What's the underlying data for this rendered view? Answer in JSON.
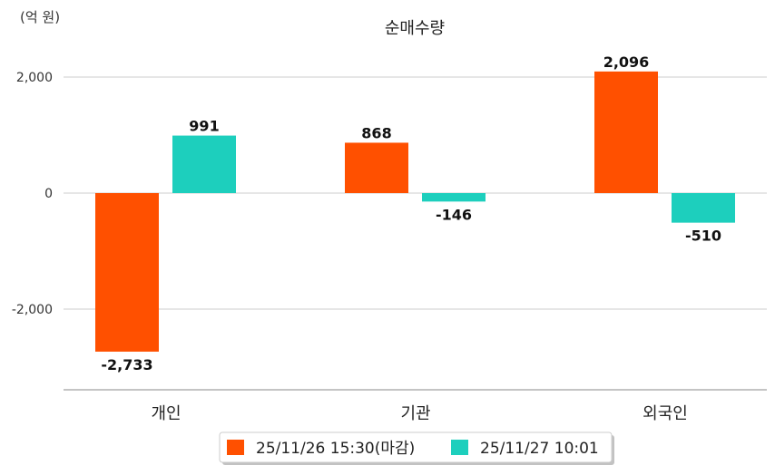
{
  "chart_data": {
    "type": "bar",
    "title": "순매수량",
    "unit_label": "(억 원)",
    "categories": [
      "개인",
      "기관",
      "외국인"
    ],
    "series": [
      {
        "name": "25/11/26 15:30(마감)",
        "color": "#FF5000",
        "values": [
          -2733,
          868,
          2096
        ],
        "labels": [
          "-2,733",
          "868",
          "2,096"
        ]
      },
      {
        "name": "25/11/27 10:01",
        "color": "#1DCFBD",
        "values": [
          991,
          -146,
          -510
        ],
        "labels": [
          "991",
          "-146",
          "-510"
        ]
      }
    ],
    "yticks": [
      2000,
      0,
      -2000
    ],
    "ytick_labels": [
      "2,000",
      "0",
      "-2,000"
    ],
    "ylim": [
      -3400,
      2000
    ],
    "grid": true,
    "legend": "bottom-center"
  }
}
